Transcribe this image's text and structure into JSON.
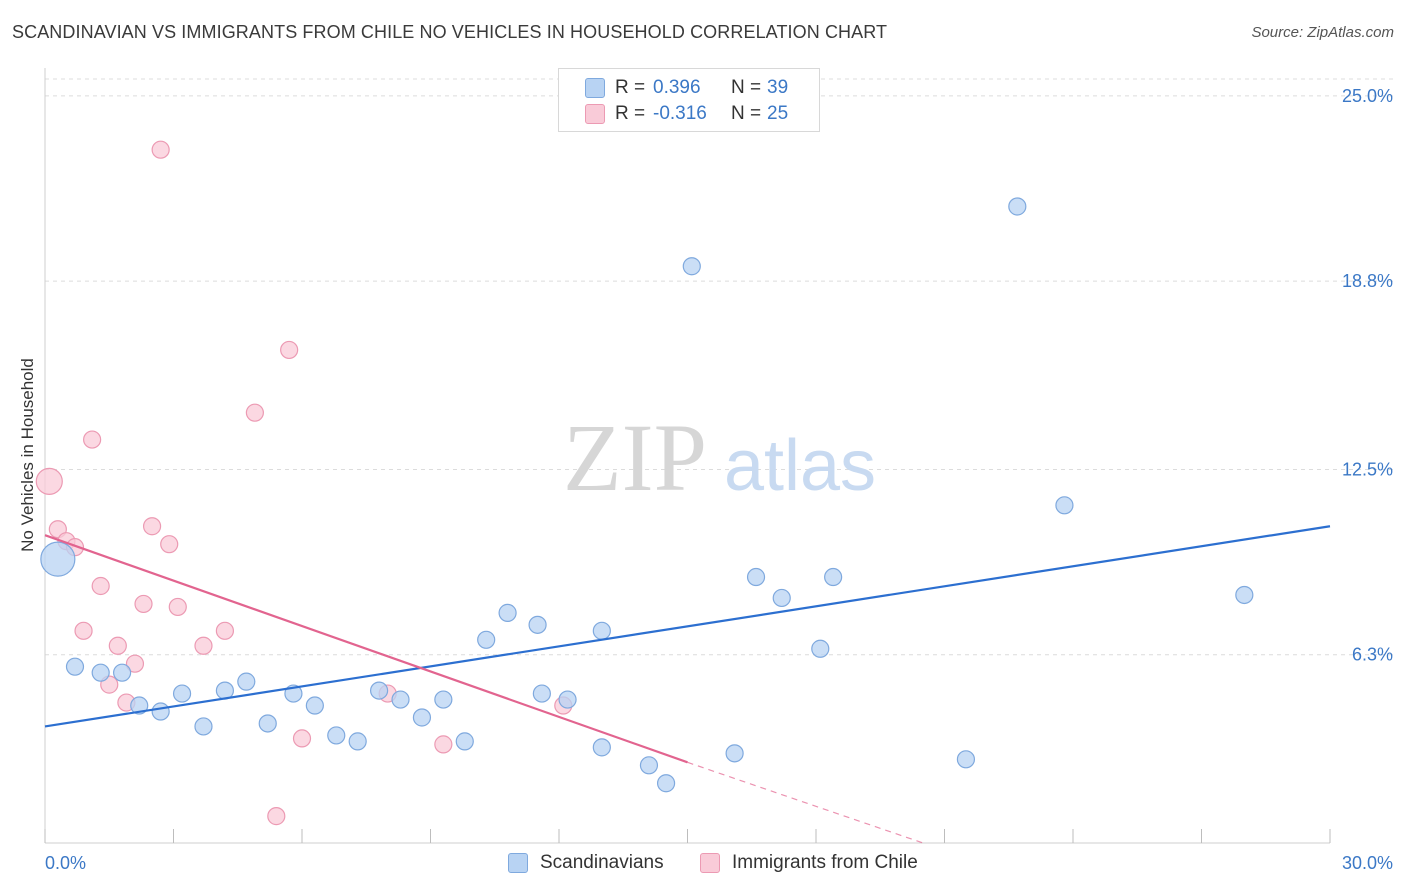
{
  "header": {
    "title": "SCANDINAVIAN VS IMMIGRANTS FROM CHILE NO VEHICLES IN HOUSEHOLD CORRELATION CHART",
    "source": "Source: ZipAtlas.com"
  },
  "watermark": {
    "zip": "ZIP",
    "atlas": "atlas"
  },
  "legend": {
    "row1": {
      "r_label": "R =",
      "r_value": "0.396",
      "n_label": "N =",
      "n_value": "39"
    },
    "row2": {
      "r_label": "R =",
      "r_value": "-0.316",
      "n_label": "N =",
      "n_value": "25"
    }
  },
  "bottom_legend": {
    "series1": "Scandinavians",
    "series2": "Immigrants from Chile"
  },
  "colors": {
    "blue_fill": "#b8d3f3",
    "blue_stroke": "#7fa9de",
    "blue_line": "#2c6fd0",
    "pink_fill": "#f9cbd8",
    "pink_stroke": "#ec9ab3",
    "pink_line": "#e2648f",
    "tick_label": "#3b78c6",
    "grid": "#dcdcdc"
  },
  "chart_data": {
    "type": "scatter",
    "title": "SCANDINAVIAN VS IMMIGRANTS FROM CHILE NO VEHICLES IN HOUSEHOLD CORRELATION CHART",
    "xlabel": "",
    "ylabel": "No Vehicles in Household",
    "xlim": [
      0,
      30
    ],
    "ylim": [
      0,
      25.8
    ],
    "x_tick_labels": [
      "0.0%",
      "30.0%"
    ],
    "y_ticks": [
      6.3,
      12.5,
      18.8,
      25.0
    ],
    "y_tick_labels": [
      "6.3%",
      "12.5%",
      "18.8%",
      "25.0%"
    ],
    "grid": "horizontal dashed",
    "series": [
      {
        "name": "Scandinavians",
        "color": "#b8d3f3",
        "points": [
          {
            "x": 0.3,
            "y": 9.5,
            "size": "large"
          },
          {
            "x": 0.7,
            "y": 5.9
          },
          {
            "x": 1.3,
            "y": 5.7
          },
          {
            "x": 1.8,
            "y": 5.7
          },
          {
            "x": 2.2,
            "y": 4.6
          },
          {
            "x": 2.7,
            "y": 4.4
          },
          {
            "x": 3.2,
            "y": 5.0
          },
          {
            "x": 3.7,
            "y": 3.9
          },
          {
            "x": 4.2,
            "y": 5.1
          },
          {
            "x": 4.7,
            "y": 5.4
          },
          {
            "x": 5.2,
            "y": 4.0
          },
          {
            "x": 5.8,
            "y": 5.0
          },
          {
            "x": 6.3,
            "y": 4.6
          },
          {
            "x": 6.8,
            "y": 3.6
          },
          {
            "x": 7.3,
            "y": 3.4
          },
          {
            "x": 7.8,
            "y": 5.1
          },
          {
            "x": 8.3,
            "y": 4.8
          },
          {
            "x": 8.8,
            "y": 4.2
          },
          {
            "x": 9.3,
            "y": 4.8
          },
          {
            "x": 9.8,
            "y": 3.4
          },
          {
            "x": 10.3,
            "y": 6.8
          },
          {
            "x": 10.8,
            "y": 7.7
          },
          {
            "x": 11.5,
            "y": 7.3
          },
          {
            "x": 11.6,
            "y": 5.0
          },
          {
            "x": 12.2,
            "y": 4.8
          },
          {
            "x": 13.0,
            "y": 7.1
          },
          {
            "x": 13.0,
            "y": 3.2
          },
          {
            "x": 14.1,
            "y": 2.6
          },
          {
            "x": 14.5,
            "y": 2.0
          },
          {
            "x": 15.1,
            "y": 19.3
          },
          {
            "x": 16.1,
            "y": 3.0
          },
          {
            "x": 16.6,
            "y": 8.9
          },
          {
            "x": 17.2,
            "y": 8.2
          },
          {
            "x": 18.1,
            "y": 6.5
          },
          {
            "x": 18.4,
            "y": 8.9
          },
          {
            "x": 21.5,
            "y": 2.8
          },
          {
            "x": 22.7,
            "y": 21.3
          },
          {
            "x": 23.8,
            "y": 11.3
          },
          {
            "x": 28.0,
            "y": 8.3
          }
        ],
        "trendline": {
          "x": [
            0,
            30
          ],
          "y": [
            3.9,
            10.6
          ]
        }
      },
      {
        "name": "Immigrants from Chile",
        "color": "#f9cbd8",
        "points": [
          {
            "x": 0.1,
            "y": 12.1,
            "size": "medium"
          },
          {
            "x": 0.3,
            "y": 10.5
          },
          {
            "x": 0.5,
            "y": 10.1
          },
          {
            "x": 0.7,
            "y": 9.9
          },
          {
            "x": 0.9,
            "y": 7.1
          },
          {
            "x": 1.1,
            "y": 13.5
          },
          {
            "x": 1.3,
            "y": 8.6
          },
          {
            "x": 1.5,
            "y": 5.3
          },
          {
            "x": 1.7,
            "y": 6.6
          },
          {
            "x": 1.9,
            "y": 4.7
          },
          {
            "x": 2.1,
            "y": 6.0
          },
          {
            "x": 2.3,
            "y": 8.0
          },
          {
            "x": 2.5,
            "y": 10.6
          },
          {
            "x": 2.7,
            "y": 23.2
          },
          {
            "x": 2.9,
            "y": 10.0
          },
          {
            "x": 3.1,
            "y": 7.9
          },
          {
            "x": 3.7,
            "y": 6.6
          },
          {
            "x": 4.2,
            "y": 7.1
          },
          {
            "x": 4.9,
            "y": 14.4
          },
          {
            "x": 5.4,
            "y": 0.9
          },
          {
            "x": 5.7,
            "y": 16.5
          },
          {
            "x": 6.0,
            "y": 3.5
          },
          {
            "x": 8.0,
            "y": 5.0
          },
          {
            "x": 9.3,
            "y": 3.3
          },
          {
            "x": 12.1,
            "y": 4.6
          }
        ],
        "trendline": {
          "x": [
            0,
            15.0
          ],
          "y": [
            10.3,
            2.7
          ],
          "dashed_extension": {
            "x": [
              15.0,
              20.5
            ],
            "y": [
              2.7,
              0
            ]
          }
        }
      }
    ]
  }
}
